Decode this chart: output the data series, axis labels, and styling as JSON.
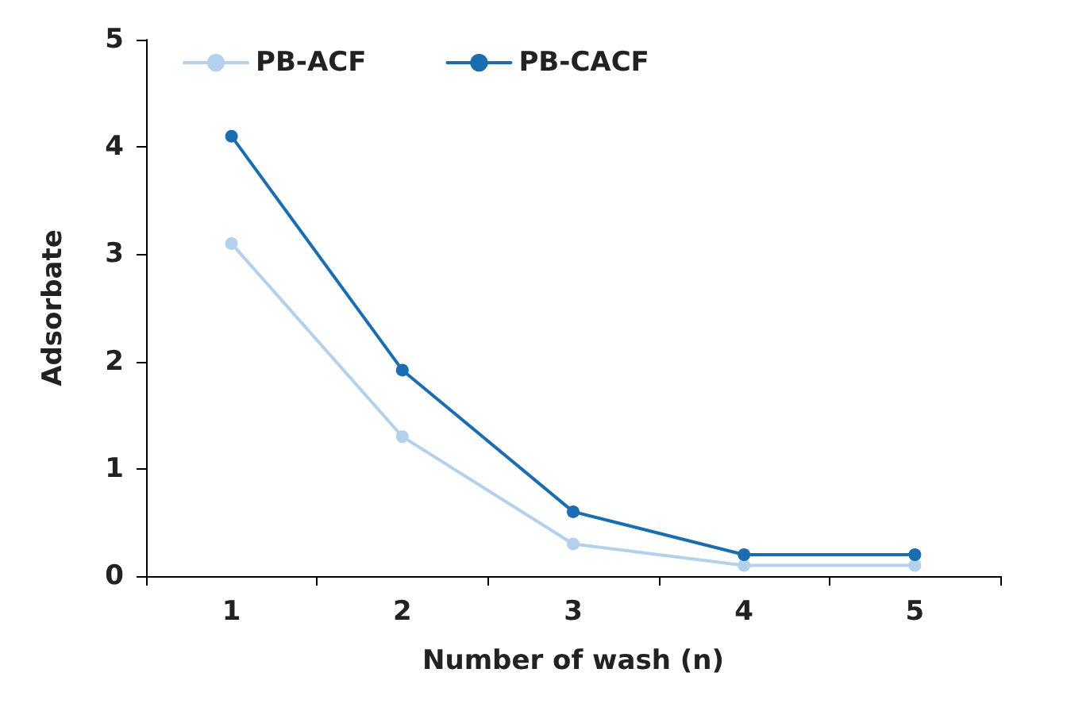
{
  "chart_data": {
    "type": "line",
    "xlabel": "Number of wash (n)",
    "ylabel": "Adsorbate",
    "categories": [
      "1",
      "2",
      "3",
      "4",
      "5"
    ],
    "series": [
      {
        "name": "PB-ACF",
        "color": "#b3d1ec",
        "values": [
          3.1,
          1.3,
          0.3,
          0.1,
          0.1
        ]
      },
      {
        "name": "PB-CACF",
        "color": "#1a6db0",
        "values": [
          4.1,
          1.92,
          0.6,
          0.2,
          0.2
        ]
      }
    ],
    "ylim": [
      0,
      5
    ],
    "yticks": [
      0,
      1,
      2,
      3,
      4,
      5
    ],
    "grid": false,
    "legend": "top left",
    "marker": "circle",
    "line_style": "solid"
  }
}
